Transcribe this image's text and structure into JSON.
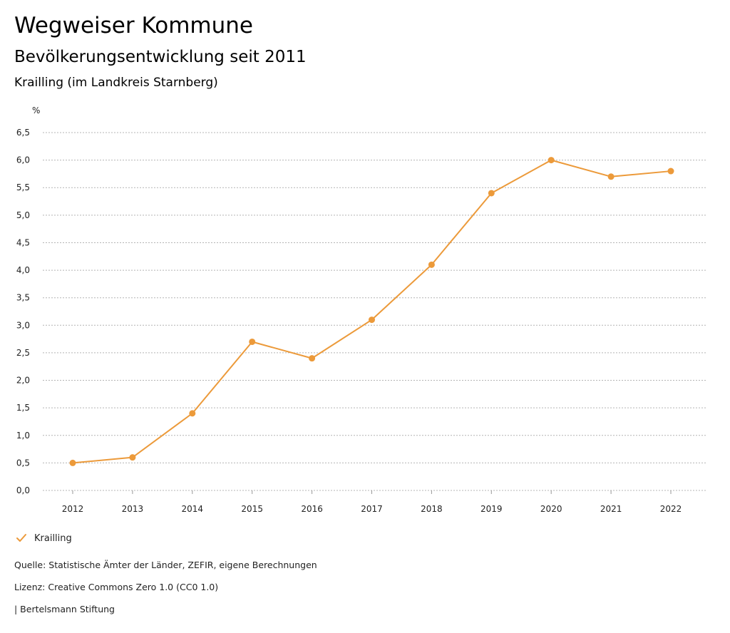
{
  "header": {
    "title": "Wegweiser Kommune",
    "subtitle": "Bevölkerungsentwicklung seit 2011",
    "region": "Krailling (im Landkreis Starnberg)"
  },
  "legend": {
    "label": "Krailling"
  },
  "footer": {
    "source": "Quelle: Statistische Ämter der Länder, ZEFIR, eigene Berechnungen",
    "license": "Lizenz: Creative Commons Zero 1.0 (CC0 1.0)",
    "publisher": "| Bertelsmann Stiftung"
  },
  "colors": {
    "series": "#ec9a3a",
    "grid": "#b4b4b4"
  },
  "chart_data": {
    "type": "line",
    "title": "Bevölkerungsentwicklung seit 2011",
    "xlabel": "",
    "ylabel": "%",
    "categories": [
      "2012",
      "2013",
      "2014",
      "2015",
      "2016",
      "2017",
      "2018",
      "2019",
      "2020",
      "2021",
      "2022"
    ],
    "series": [
      {
        "name": "Krailling",
        "values": [
          0.5,
          0.6,
          1.4,
          2.7,
          2.4,
          3.1,
          4.1,
          5.4,
          6.0,
          5.7,
          5.8
        ]
      }
    ],
    "ylim": [
      0,
      6.5
    ],
    "yticks": [
      "0,0",
      "0,5",
      "1,0",
      "1,5",
      "2,0",
      "2,5",
      "3,0",
      "3,5",
      "4,0",
      "4,5",
      "5,0",
      "5,5",
      "6,0",
      "6,5"
    ],
    "grid": true,
    "legend_position": "bottom-left"
  }
}
